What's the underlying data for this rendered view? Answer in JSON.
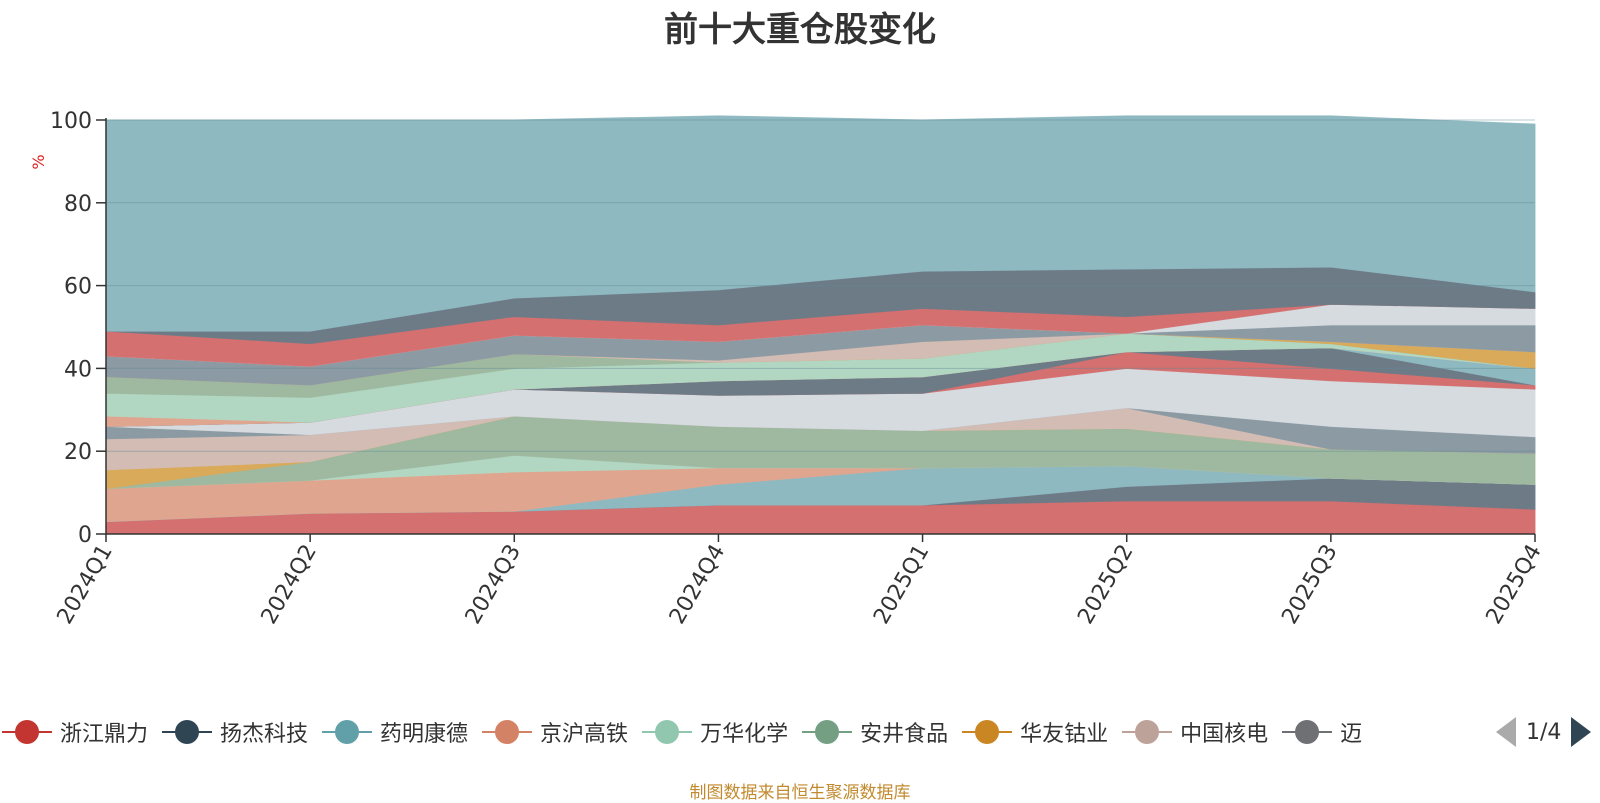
{
  "title": "前十大重仓股变化",
  "source_note": "制图数据来自恒生聚源数据库",
  "legend_page": "1/4",
  "chart_data": {
    "type": "area",
    "stacked": true,
    "title": "前十大重仓股变化",
    "ylabel": "%",
    "ylim": [
      0,
      100
    ],
    "y_ticks": [
      0,
      20,
      40,
      60,
      80,
      100
    ],
    "grid": true,
    "legend_placement": "bottom",
    "x": [
      "2024Q1",
      "2024Q2",
      "2024Q3",
      "2024Q4",
      "2025Q1",
      "2025Q2",
      "2025Q3",
      "2025Q4"
    ],
    "layers": [
      {
        "color": "#d47070",
        "values": [
          3,
          5,
          5.5,
          7,
          7,
          8,
          8,
          6
        ]
      },
      {
        "color": "#6d7b87",
        "values": [
          0,
          0,
          0,
          0,
          0,
          3.5,
          5.5,
          6
        ]
      },
      {
        "color": "#8fb9c1",
        "values": [
          0,
          0,
          0,
          5,
          9,
          5,
          0,
          0
        ]
      },
      {
        "color": "#e0a58f",
        "values": [
          8,
          8,
          9.5,
          4,
          0,
          0,
          0,
          0
        ]
      },
      {
        "color": "#b1d7c2",
        "values": [
          0,
          0,
          4,
          0,
          0,
          0,
          0,
          0
        ]
      },
      {
        "color": "#9eb9a0",
        "values": [
          0,
          4.5,
          9.5,
          10,
          9,
          9,
          7,
          7.5
        ]
      },
      {
        "color": "#d9aa5a",
        "values": [
          4.5,
          0,
          0,
          0,
          0,
          0,
          0,
          0
        ]
      },
      {
        "color": "#d3bcb4",
        "values": [
          7.5,
          6.5,
          0,
          0,
          0,
          5,
          0,
          0
        ]
      },
      {
        "color": "#8b9aa3",
        "values": [
          3,
          0,
          0,
          0,
          0,
          0,
          5.5,
          4
        ]
      },
      {
        "color": "#d6dbe0",
        "values": [
          0,
          3,
          6.5,
          7.5,
          9,
          9.5,
          11,
          11.5
        ]
      },
      {
        "color": "#d47070",
        "values": [
          0,
          0,
          0,
          0,
          0,
          4,
          3,
          1
        ]
      },
      {
        "color": "#6d7b87",
        "values": [
          0,
          0,
          0,
          3.5,
          4,
          0,
          5,
          0
        ]
      },
      {
        "color": "#8fb9c1",
        "values": [
          0,
          0,
          0,
          0,
          0,
          0,
          0,
          4
        ]
      },
      {
        "color": "#e0a58f",
        "values": [
          2.5,
          0,
          0,
          0,
          0,
          0,
          0,
          0
        ]
      },
      {
        "color": "#b1d7c2",
        "values": [
          5.5,
          6,
          5,
          4.5,
          4.5,
          4.5,
          1,
          0
        ]
      },
      {
        "color": "#9eb9a0",
        "values": [
          4,
          3,
          3.5,
          0,
          0,
          0,
          0,
          0
        ]
      },
      {
        "color": "#d9aa5a",
        "values": [
          0,
          0,
          0,
          0,
          0,
          0,
          0.5,
          4
        ]
      },
      {
        "color": "#d3bcb4",
        "values": [
          0,
          0,
          0,
          0.5,
          4,
          0,
          0,
          0
        ]
      },
      {
        "color": "#8b9aa3",
        "values": [
          5,
          4.5,
          4.5,
          4.5,
          4,
          0,
          4,
          6.5
        ]
      },
      {
        "color": "#d6dbe0",
        "values": [
          0,
          0,
          0,
          0,
          0,
          0,
          5,
          4
        ]
      },
      {
        "color": "#d47070",
        "values": [
          6,
          5.5,
          4.5,
          4,
          4,
          4,
          0,
          0
        ]
      },
      {
        "color": "#6d7b87",
        "values": [
          0,
          3,
          4.5,
          8.5,
          9,
          11.5,
          9,
          4
        ]
      },
      {
        "color": "#8fb9c1",
        "values": [
          51,
          51,
          43,
          42,
          36.5,
          37,
          36.5,
          40.5
        ]
      }
    ],
    "legend": [
      {
        "name": "浙江鼎力",
        "color": "#c23531"
      },
      {
        "name": "扬杰科技",
        "color": "#2f4554"
      },
      {
        "name": "药明康德",
        "color": "#61a0a8"
      },
      {
        "name": "京沪高铁",
        "color": "#d48265"
      },
      {
        "name": "万华化学",
        "color": "#91c7ae"
      },
      {
        "name": "安井食品",
        "color": "#749f83"
      },
      {
        "name": "华友钴业",
        "color": "#ca8622"
      },
      {
        "name": "中国核电",
        "color": "#bda29a"
      },
      {
        "name": "迈",
        "color": "#6e7074"
      }
    ]
  }
}
